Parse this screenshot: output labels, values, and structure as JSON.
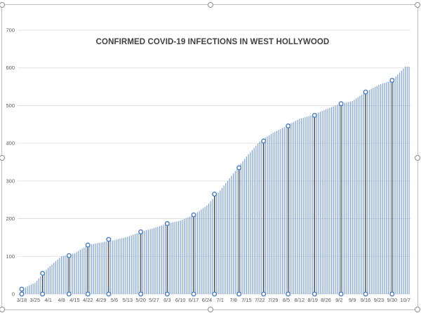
{
  "chart_data": {
    "type": "bar",
    "title": "CONFIRMED COVID-19 INFECTIONS IN WEST HOLLYWOOD",
    "xlabel": "",
    "ylabel": "",
    "ylim": [
      0,
      700
    ],
    "yticks": [
      0,
      100,
      200,
      300,
      400,
      500,
      600,
      700
    ],
    "grid": true,
    "legend": "none",
    "bar_color": "#7fa2d6",
    "highlight_color": "#404040",
    "marker_color": "#4a7fc4",
    "x_tick_labels": [
      "3/18",
      "3/25",
      "4/1",
      "4/8",
      "4/15",
      "4/22",
      "4/29",
      "5/6",
      "5/13",
      "5/20",
      "5/27",
      "6/3",
      "6/10",
      "6/17",
      "6/24",
      "7/1",
      "7/8",
      "7/15",
      "7/22",
      "7/29",
      "8/5",
      "8/12",
      "8/19",
      "8/26",
      "9/2",
      "9/9",
      "9/16",
      "9/23",
      "9/30",
      "10/7"
    ],
    "anchor_dates": [
      {
        "date": "3/18",
        "value": 13
      },
      {
        "date": "3/25",
        "value": 30
      },
      {
        "date": "4/1",
        "value": 70
      },
      {
        "date": "4/8",
        "value": 100
      },
      {
        "date": "4/15",
        "value": 108
      },
      {
        "date": "4/22",
        "value": 130
      },
      {
        "date": "4/29",
        "value": 137
      },
      {
        "date": "5/6",
        "value": 143
      },
      {
        "date": "5/13",
        "value": 152
      },
      {
        "date": "5/20",
        "value": 165
      },
      {
        "date": "5/27",
        "value": 175
      },
      {
        "date": "6/3",
        "value": 187
      },
      {
        "date": "6/10",
        "value": 195
      },
      {
        "date": "6/17",
        "value": 210
      },
      {
        "date": "6/24",
        "value": 235
      },
      {
        "date": "7/1",
        "value": 275
      },
      {
        "date": "7/8",
        "value": 320
      },
      {
        "date": "7/15",
        "value": 365
      },
      {
        "date": "7/22",
        "value": 405
      },
      {
        "date": "7/29",
        "value": 428
      },
      {
        "date": "8/5",
        "value": 446
      },
      {
        "date": "8/12",
        "value": 465
      },
      {
        "date": "8/19",
        "value": 475
      },
      {
        "date": "8/26",
        "value": 490
      },
      {
        "date": "9/2",
        "value": 504
      },
      {
        "date": "9/9",
        "value": 512
      },
      {
        "date": "9/16",
        "value": 536
      },
      {
        "date": "9/23",
        "value": 555
      },
      {
        "date": "9/30",
        "value": 567
      },
      {
        "date": "10/7",
        "value": 603
      }
    ],
    "highlighted_points": [
      {
        "date": "3/18",
        "value": 13
      },
      {
        "date": "3/29",
        "value": 55
      },
      {
        "date": "4/12",
        "value": 102
      },
      {
        "date": "4/22",
        "value": 130
      },
      {
        "date": "5/3",
        "value": 145
      },
      {
        "date": "5/20",
        "value": 165
      },
      {
        "date": "6/3",
        "value": 187
      },
      {
        "date": "6/17",
        "value": 210
      },
      {
        "date": "6/28",
        "value": 265
      },
      {
        "date": "7/11",
        "value": 335
      },
      {
        "date": "7/24",
        "value": 406
      },
      {
        "date": "8/6",
        "value": 446
      },
      {
        "date": "8/20",
        "value": 474
      },
      {
        "date": "9/3",
        "value": 505
      },
      {
        "date": "9/16",
        "value": 536
      },
      {
        "date": "9/30",
        "value": 567
      }
    ]
  }
}
